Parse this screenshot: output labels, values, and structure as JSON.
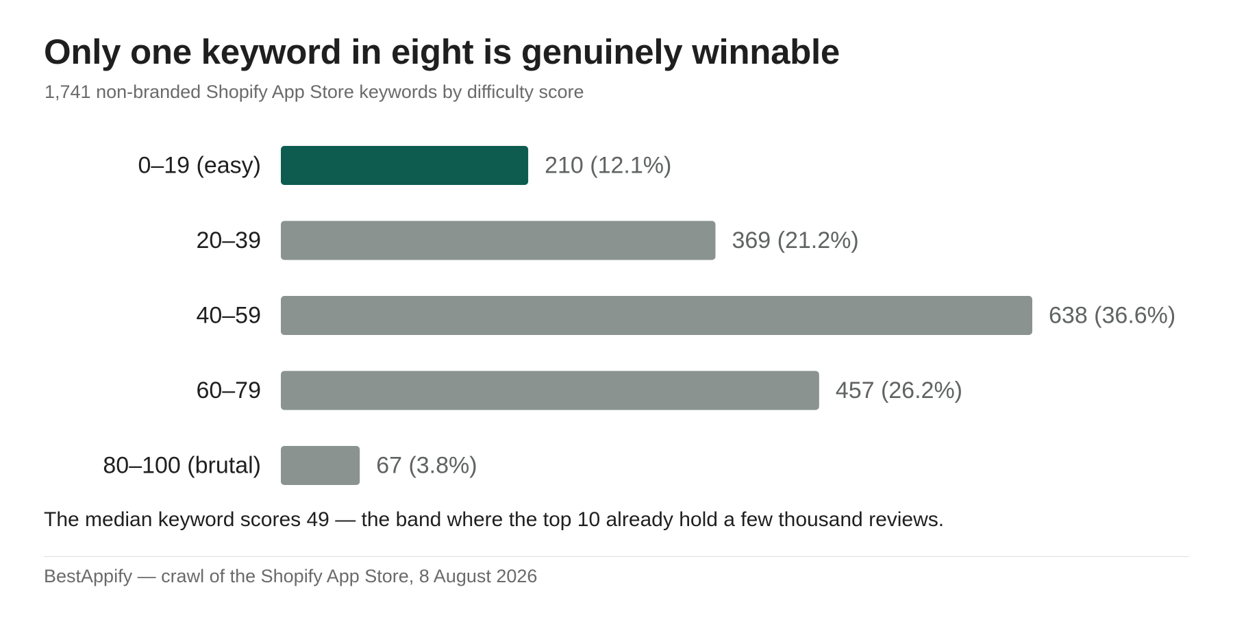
{
  "header": {
    "title": "Only one keyword in eight is genuinely winnable",
    "subtitle": "1,741 non-branded Shopify App Store keywords by difficulty score"
  },
  "footer": {
    "note": "The median keyword scores 49 — the band where the top 10 already hold a few thousand reviews.",
    "source": "BestAppify — crawl of the Shopify App Store, 8 August 2026"
  },
  "colors": {
    "highlight": "#0e5c50",
    "default_bar": "#8a9390",
    "value_text": "#5f6361",
    "category_text": "#1f1f1f"
  },
  "chart_data": {
    "type": "bar",
    "orientation": "horizontal",
    "title": "Only one keyword in eight is genuinely winnable",
    "subtitle": "1,741 non-branded Shopify App Store keywords by difficulty score",
    "categories": [
      "0–19 (easy)",
      "20–39",
      "40–59",
      "60–79",
      "80–100 (brutal)"
    ],
    "values": [
      210,
      369,
      638,
      457,
      67
    ],
    "value_labels": [
      "210 (12.1%)",
      "369 (21.2%)",
      "638 (36.6%)",
      "457 (26.2%)",
      "67 (3.8%)"
    ],
    "highlighted": [
      "0–19 (easy)"
    ],
    "xlim": [
      0,
      638
    ],
    "grid": false,
    "legend": "none"
  }
}
